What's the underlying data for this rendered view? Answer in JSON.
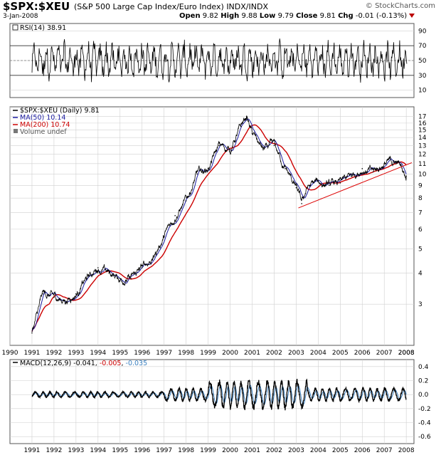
{
  "header": {
    "symbol": "$SPX:$XEU",
    "description": "(S&P 500 Large Cap Index/Euro Index)",
    "exchange": "INDX/INDX",
    "date": "3-Jan-2008",
    "brand": "© StockCharts.com",
    "open_label": "Open",
    "open_value": "9.82",
    "high_label": "High",
    "high_value": "9.88",
    "low_label": "Low",
    "low_value": "9.79",
    "close_label": "Close",
    "close_value": "9.81",
    "chg_label": "Chg",
    "chg_value": "-0.01 (-0.13%)"
  },
  "colors": {
    "price": "#000000",
    "ma50": "#1a1aa0",
    "ma200": "#cc0000",
    "trend": "#dd0000",
    "signal": "#3a7fbf",
    "grid": "#d0d0d0"
  },
  "chart_data": [
    {
      "type": "line",
      "title": "RSI(14) 38.91",
      "series": [
        {
          "name": "RSI(14)",
          "last": 38.91
        }
      ],
      "ylim": [
        0,
        100
      ],
      "ticks": [
        "10",
        "30",
        "50",
        "70",
        "90"
      ],
      "reference_lines": [
        30,
        50,
        70
      ]
    },
    {
      "type": "line",
      "title": "$SPX:$XEU (Daily) 9.81",
      "legend": [
        "$SPX:$XEU (Daily) 9.81",
        "MA(50) 10.14",
        "MA(200) 10.74",
        "Volume undef"
      ],
      "y_ticks": [
        "3",
        "4",
        "5",
        "6",
        "7",
        "8",
        "9",
        "10",
        "11",
        "12",
        "13",
        "14",
        "15",
        "16",
        "17"
      ],
      "y_scale": "log",
      "x": [
        1991.0,
        1991.5,
        1992.0,
        1992.5,
        1993.0,
        1993.5,
        1994.0,
        1994.5,
        1995.0,
        1995.5,
        1996.0,
        1996.5,
        1997.0,
        1997.5,
        1998.0,
        1998.5,
        1999.0,
        1999.5,
        2000.0,
        2000.5,
        2000.75,
        2001.0,
        2001.5,
        2002.0,
        2002.5,
        2003.0,
        2003.25,
        2003.5,
        2004.0,
        2004.5,
        2005.0,
        2005.5,
        2006.0,
        2006.5,
        2007.0,
        2007.5,
        2007.75,
        2008.0
      ],
      "series": [
        {
          "name": "$SPX:$XEU",
          "values": [
            2.3,
            3.3,
            3.2,
            3.1,
            3.3,
            3.8,
            4.2,
            4.0,
            3.8,
            3.8,
            4.2,
            4.6,
            5.6,
            6.8,
            7.8,
            10.0,
            10.5,
            13.0,
            12.5,
            15.5,
            17.0,
            14.5,
            12.5,
            13.0,
            10.5,
            8.8,
            7.6,
            8.8,
            9.3,
            9.0,
            9.2,
            9.8,
            10.5,
            10.2,
            11.0,
            11.2,
            10.8,
            9.81
          ]
        },
        {
          "name": "MA(50)",
          "last": 10.14
        },
        {
          "name": "MA(200)",
          "last": 10.74
        },
        {
          "name": "Trendline",
          "points": [
            [
              2003.1,
              7.3
            ],
            [
              2008.25,
              11.1
            ]
          ]
        }
      ],
      "x_ticks": [
        "1990",
        "1991",
        "1992",
        "1993",
        "1994",
        "1995",
        "1996",
        "1997",
        "1998",
        "1999",
        "2000",
        "2001",
        "2002",
        "2003",
        "2004",
        "2005",
        "2006",
        "2007",
        "2008"
      ]
    },
    {
      "type": "line",
      "title": "MACD(12,26,9)",
      "macd": "-0.041",
      "signal": "-0.005",
      "histogram": "-0.035",
      "ylim": [
        -0.7,
        0.5
      ],
      "ticks": [
        "0.4",
        "0.2",
        "0.0",
        "-0.2",
        "-0.4",
        "-0.6"
      ],
      "x_ticks": [
        "1991",
        "1992",
        "1993",
        "1994",
        "1995",
        "1996",
        "1997",
        "1998",
        "1999",
        "2000",
        "2001",
        "2002",
        "2003",
        "2004",
        "2005",
        "2006",
        "2007",
        "2008"
      ]
    }
  ]
}
